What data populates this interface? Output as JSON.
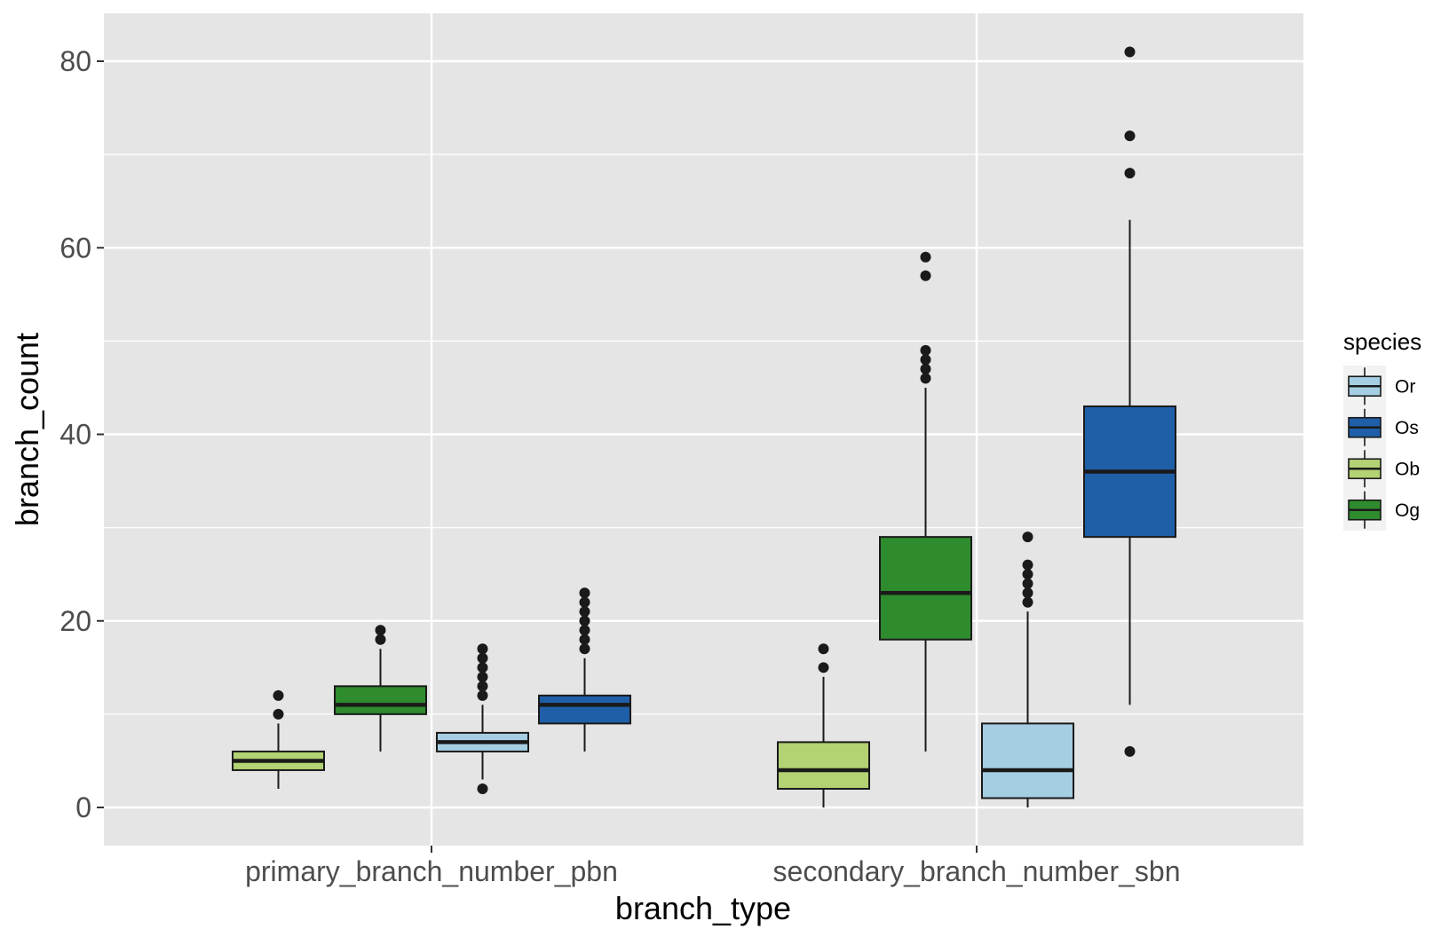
{
  "chart_data": {
    "type": "boxplot",
    "xlabel": "branch_type",
    "ylabel": "branch_count",
    "categories": [
      "primary_branch_number_pbn",
      "secondary_branch_number_sbn"
    ],
    "ylim": [
      -4,
      84
    ],
    "yticks": [
      0,
      20,
      40,
      60,
      80
    ],
    "grid": true,
    "legend": {
      "title": "species",
      "position": "right",
      "entries": [
        "Or",
        "Os",
        "Ob",
        "Og"
      ]
    },
    "dodge_order": [
      "Ob",
      "Og",
      "Or",
      "Os"
    ],
    "series": [
      {
        "name": "Or",
        "color": "#a6cee3",
        "boxes": [
          {
            "category": "primary_branch_number_pbn",
            "whisker_low": 3,
            "q1": 6,
            "median": 7,
            "q3": 8,
            "whisker_high": 11,
            "outliers": [
              2,
              12,
              13,
              14,
              15,
              16,
              17
            ]
          },
          {
            "category": "secondary_branch_number_sbn",
            "whisker_low": 0,
            "q1": 1,
            "median": 4,
            "q3": 9,
            "whisker_high": 21,
            "outliers": [
              22,
              23,
              24,
              25,
              26,
              29
            ]
          }
        ]
      },
      {
        "name": "Os",
        "color": "#1f5fa8",
        "boxes": [
          {
            "category": "primary_branch_number_pbn",
            "whisker_low": 6,
            "q1": 9,
            "median": 11,
            "q3": 12,
            "whisker_high": 16,
            "outliers": [
              17,
              18,
              19,
              20,
              21,
              22,
              23
            ]
          },
          {
            "category": "secondary_branch_number_sbn",
            "whisker_low": 11,
            "q1": 29,
            "median": 36,
            "q3": 43,
            "whisker_high": 63,
            "outliers": [
              6,
              68,
              72,
              81
            ]
          }
        ]
      },
      {
        "name": "Ob",
        "color": "#b2d273",
        "boxes": [
          {
            "category": "primary_branch_number_pbn",
            "whisker_low": 2,
            "q1": 4,
            "median": 5,
            "q3": 6,
            "whisker_high": 9,
            "outliers": [
              10,
              12
            ]
          },
          {
            "category": "secondary_branch_number_sbn",
            "whisker_low": 0,
            "q1": 2,
            "median": 4,
            "q3": 7,
            "whisker_high": 14,
            "outliers": [
              15,
              17
            ]
          }
        ]
      },
      {
        "name": "Og",
        "color": "#2e8b2e",
        "boxes": [
          {
            "category": "primary_branch_number_pbn",
            "whisker_low": 6,
            "q1": 10,
            "median": 11,
            "q3": 13,
            "whisker_high": 17,
            "outliers": [
              18,
              19
            ]
          },
          {
            "category": "secondary_branch_number_sbn",
            "whisker_low": 6,
            "q1": 18,
            "median": 23,
            "q3": 29,
            "whisker_high": 45,
            "outliers": [
              46,
              47,
              48,
              49,
              57,
              59
            ]
          }
        ]
      }
    ]
  }
}
